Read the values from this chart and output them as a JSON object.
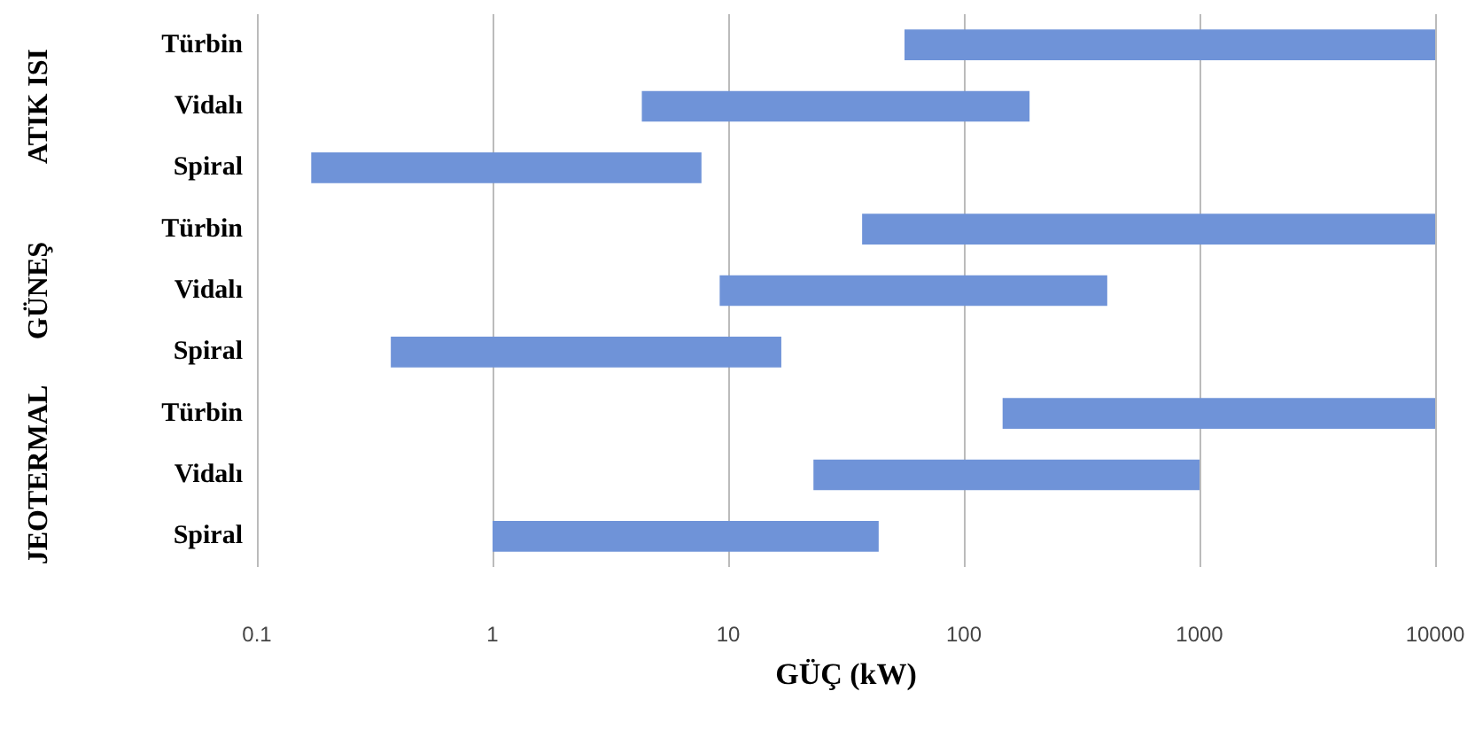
{
  "chart_data": {
    "type": "bar",
    "orientation": "horizontal",
    "log": "x",
    "xlabel": "GÜÇ (kW)",
    "categories": [
      "Türbin",
      "Vidalı",
      "Spiral",
      "Türbin",
      "Vidalı",
      "Spiral",
      "Türbin",
      "Vidalı",
      "Spiral"
    ],
    "base": [
      56,
      4.3,
      0.17,
      37,
      9.2,
      0.37,
      146,
      23,
      1
    ],
    "values": [
      9944,
      185.7,
      7.53,
      9963,
      396.8,
      16.43,
      9854,
      977,
      42.5
    ],
    "color": "#6f93d8",
    "xlim": [
      0.1,
      10000
    ],
    "xticks": [
      0.1,
      1,
      10,
      100,
      1000,
      10000
    ],
    "grid": "x",
    "annotations": [
      "ATIK ISI",
      "GÜNEŞ",
      "JEOTERMAL"
    ]
  }
}
